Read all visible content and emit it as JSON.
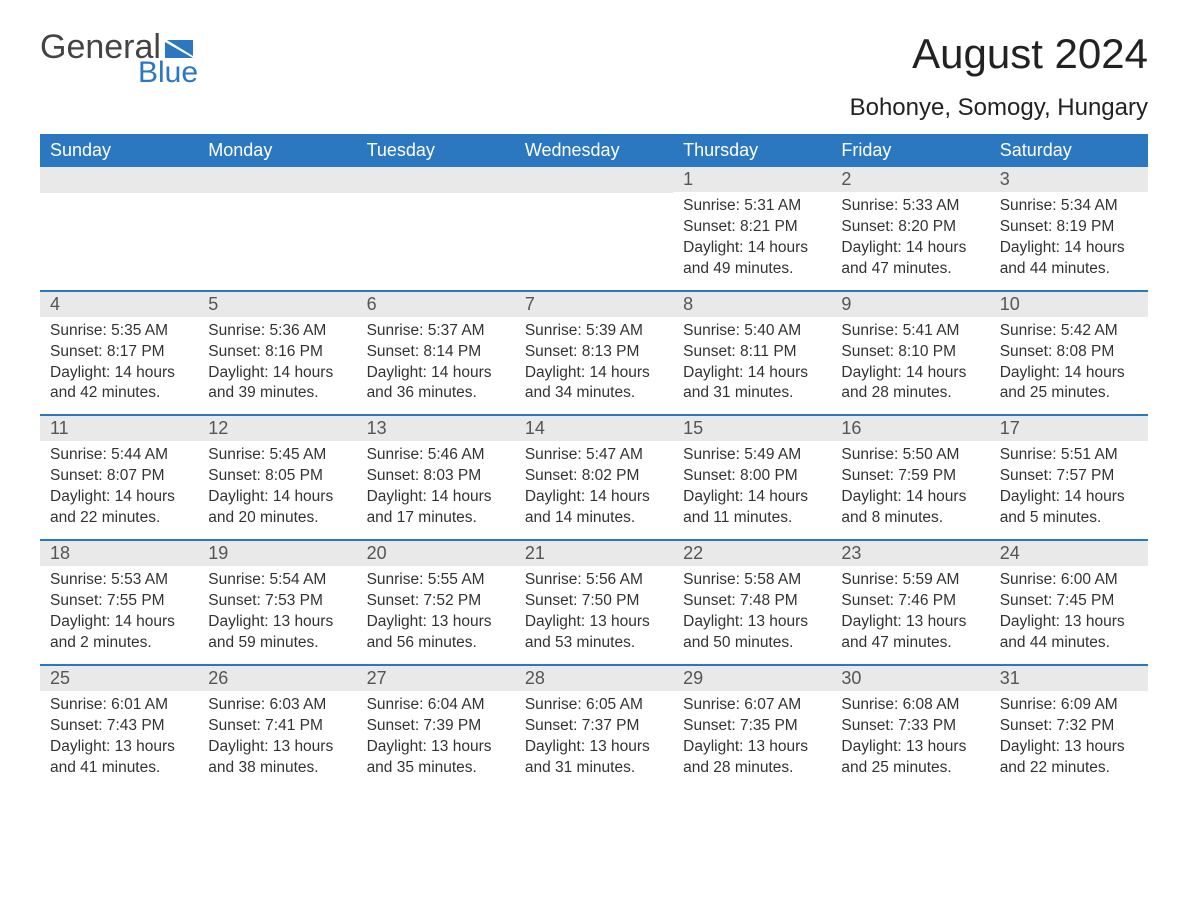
{
  "logo": {
    "text_general": "General",
    "text_blue": "Blue",
    "flag_color": "#2b77c0"
  },
  "title": "August 2024",
  "location": "Bohonye, Somogy, Hungary",
  "colors": {
    "header_bg": "#2b77c0",
    "header_text": "#ffffff",
    "daynum_bg": "#e9e9e9",
    "week_border": "#2b77c0",
    "body_text": "#333333",
    "background": "#ffffff"
  },
  "weekdays": [
    "Sunday",
    "Monday",
    "Tuesday",
    "Wednesday",
    "Thursday",
    "Friday",
    "Saturday"
  ],
  "weeks": [
    [
      null,
      null,
      null,
      null,
      {
        "num": "1",
        "sunrise": "Sunrise: 5:31 AM",
        "sunset": "Sunset: 8:21 PM",
        "daylight": "Daylight: 14 hours and 49 minutes."
      },
      {
        "num": "2",
        "sunrise": "Sunrise: 5:33 AM",
        "sunset": "Sunset: 8:20 PM",
        "daylight": "Daylight: 14 hours and 47 minutes."
      },
      {
        "num": "3",
        "sunrise": "Sunrise: 5:34 AM",
        "sunset": "Sunset: 8:19 PM",
        "daylight": "Daylight: 14 hours and 44 minutes."
      }
    ],
    [
      {
        "num": "4",
        "sunrise": "Sunrise: 5:35 AM",
        "sunset": "Sunset: 8:17 PM",
        "daylight": "Daylight: 14 hours and 42 minutes."
      },
      {
        "num": "5",
        "sunrise": "Sunrise: 5:36 AM",
        "sunset": "Sunset: 8:16 PM",
        "daylight": "Daylight: 14 hours and 39 minutes."
      },
      {
        "num": "6",
        "sunrise": "Sunrise: 5:37 AM",
        "sunset": "Sunset: 8:14 PM",
        "daylight": "Daylight: 14 hours and 36 minutes."
      },
      {
        "num": "7",
        "sunrise": "Sunrise: 5:39 AM",
        "sunset": "Sunset: 8:13 PM",
        "daylight": "Daylight: 14 hours and 34 minutes."
      },
      {
        "num": "8",
        "sunrise": "Sunrise: 5:40 AM",
        "sunset": "Sunset: 8:11 PM",
        "daylight": "Daylight: 14 hours and 31 minutes."
      },
      {
        "num": "9",
        "sunrise": "Sunrise: 5:41 AM",
        "sunset": "Sunset: 8:10 PM",
        "daylight": "Daylight: 14 hours and 28 minutes."
      },
      {
        "num": "10",
        "sunrise": "Sunrise: 5:42 AM",
        "sunset": "Sunset: 8:08 PM",
        "daylight": "Daylight: 14 hours and 25 minutes."
      }
    ],
    [
      {
        "num": "11",
        "sunrise": "Sunrise: 5:44 AM",
        "sunset": "Sunset: 8:07 PM",
        "daylight": "Daylight: 14 hours and 22 minutes."
      },
      {
        "num": "12",
        "sunrise": "Sunrise: 5:45 AM",
        "sunset": "Sunset: 8:05 PM",
        "daylight": "Daylight: 14 hours and 20 minutes."
      },
      {
        "num": "13",
        "sunrise": "Sunrise: 5:46 AM",
        "sunset": "Sunset: 8:03 PM",
        "daylight": "Daylight: 14 hours and 17 minutes."
      },
      {
        "num": "14",
        "sunrise": "Sunrise: 5:47 AM",
        "sunset": "Sunset: 8:02 PM",
        "daylight": "Daylight: 14 hours and 14 minutes."
      },
      {
        "num": "15",
        "sunrise": "Sunrise: 5:49 AM",
        "sunset": "Sunset: 8:00 PM",
        "daylight": "Daylight: 14 hours and 11 minutes."
      },
      {
        "num": "16",
        "sunrise": "Sunrise: 5:50 AM",
        "sunset": "Sunset: 7:59 PM",
        "daylight": "Daylight: 14 hours and 8 minutes."
      },
      {
        "num": "17",
        "sunrise": "Sunrise: 5:51 AM",
        "sunset": "Sunset: 7:57 PM",
        "daylight": "Daylight: 14 hours and 5 minutes."
      }
    ],
    [
      {
        "num": "18",
        "sunrise": "Sunrise: 5:53 AM",
        "sunset": "Sunset: 7:55 PM",
        "daylight": "Daylight: 14 hours and 2 minutes."
      },
      {
        "num": "19",
        "sunrise": "Sunrise: 5:54 AM",
        "sunset": "Sunset: 7:53 PM",
        "daylight": "Daylight: 13 hours and 59 minutes."
      },
      {
        "num": "20",
        "sunrise": "Sunrise: 5:55 AM",
        "sunset": "Sunset: 7:52 PM",
        "daylight": "Daylight: 13 hours and 56 minutes."
      },
      {
        "num": "21",
        "sunrise": "Sunrise: 5:56 AM",
        "sunset": "Sunset: 7:50 PM",
        "daylight": "Daylight: 13 hours and 53 minutes."
      },
      {
        "num": "22",
        "sunrise": "Sunrise: 5:58 AM",
        "sunset": "Sunset: 7:48 PM",
        "daylight": "Daylight: 13 hours and 50 minutes."
      },
      {
        "num": "23",
        "sunrise": "Sunrise: 5:59 AM",
        "sunset": "Sunset: 7:46 PM",
        "daylight": "Daylight: 13 hours and 47 minutes."
      },
      {
        "num": "24",
        "sunrise": "Sunrise: 6:00 AM",
        "sunset": "Sunset: 7:45 PM",
        "daylight": "Daylight: 13 hours and 44 minutes."
      }
    ],
    [
      {
        "num": "25",
        "sunrise": "Sunrise: 6:01 AM",
        "sunset": "Sunset: 7:43 PM",
        "daylight": "Daylight: 13 hours and 41 minutes."
      },
      {
        "num": "26",
        "sunrise": "Sunrise: 6:03 AM",
        "sunset": "Sunset: 7:41 PM",
        "daylight": "Daylight: 13 hours and 38 minutes."
      },
      {
        "num": "27",
        "sunrise": "Sunrise: 6:04 AM",
        "sunset": "Sunset: 7:39 PM",
        "daylight": "Daylight: 13 hours and 35 minutes."
      },
      {
        "num": "28",
        "sunrise": "Sunrise: 6:05 AM",
        "sunset": "Sunset: 7:37 PM",
        "daylight": "Daylight: 13 hours and 31 minutes."
      },
      {
        "num": "29",
        "sunrise": "Sunrise: 6:07 AM",
        "sunset": "Sunset: 7:35 PM",
        "daylight": "Daylight: 13 hours and 28 minutes."
      },
      {
        "num": "30",
        "sunrise": "Sunrise: 6:08 AM",
        "sunset": "Sunset: 7:33 PM",
        "daylight": "Daylight: 13 hours and 25 minutes."
      },
      {
        "num": "31",
        "sunrise": "Sunrise: 6:09 AM",
        "sunset": "Sunset: 7:32 PM",
        "daylight": "Daylight: 13 hours and 22 minutes."
      }
    ]
  ]
}
